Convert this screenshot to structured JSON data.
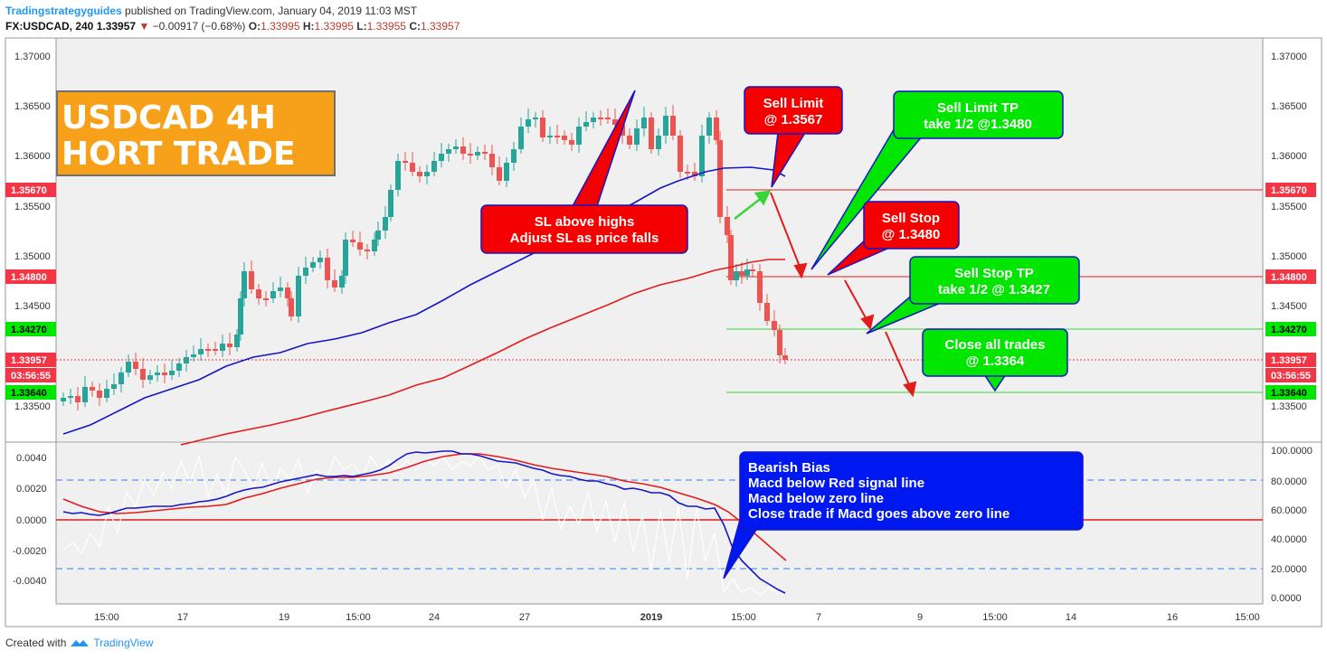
{
  "header": {
    "publisher": "Tradingstrategyguides",
    "published_text": "published on TradingView.com, January 04, 2019 11:03 MST",
    "symbol": "FX:USDCAD, 240",
    "last": "1.33957",
    "change": "−0.00917 (−0.68%)",
    "ohlc": {
      "O": "1.33995",
      "H": "1.33995",
      "L": "1.33955",
      "C": "1.33957"
    }
  },
  "title_box": {
    "line1": "USDCAD 4H",
    "line2": "HORT TRADE"
  },
  "price_axis": {
    "ticks": [
      "1.37000",
      "1.36500",
      "1.36000",
      "1.35500",
      "1.35000",
      "1.34500",
      "1.34000",
      "1.33500"
    ],
    "left_labels": [
      {
        "text": "1.35670",
        "color": "#f23645"
      },
      {
        "text": "1.34800",
        "color": "#f23645"
      },
      {
        "text": "1.34270",
        "color": "#00e600"
      },
      {
        "text": "1.33957",
        "color": "#f23645"
      },
      {
        "text": "03:56:55",
        "color": "#f23645"
      },
      {
        "text": "1.33640",
        "color": "#00e600"
      }
    ]
  },
  "macd_axis": {
    "left_ticks": [
      "0.0040",
      "0.0020",
      "0.0000",
      "-0.0020",
      "-0.0040"
    ],
    "right_ticks": [
      "100.0000",
      "80.0000",
      "60.0000",
      "40.0000",
      "20.0000",
      "0.0000"
    ]
  },
  "time_axis": [
    "15:00",
    "17",
    "19",
    "15:00",
    "24",
    "27",
    "2019",
    "15:00",
    "7",
    "9",
    "15:00",
    "14",
    "16",
    "15:00"
  ],
  "callouts": {
    "sl": [
      "SL above highs",
      "Adjust SL as price falls"
    ],
    "sell_limit": [
      "Sell Limit",
      "@ 1.3567"
    ],
    "sell_limit_tp": [
      "Sell Limit TP",
      "take 1/2 @1.3480"
    ],
    "sell_stop": [
      "Sell Stop",
      "@ 1.3480"
    ],
    "sell_stop_tp": [
      "Sell Stop TP",
      "take 1/2 @ 1.3427"
    ],
    "close_all": [
      "Close all trades",
      "@ 1.3364"
    ],
    "bearish": [
      "Bearish Bias",
      "Macd below Red signal line",
      "Macd below zero line",
      "Close trade if Macd goes above zero line"
    ]
  },
  "footer": {
    "created_with": "Created with",
    "brand": "TradingView"
  },
  "colors": {
    "up": "#26a69a",
    "down": "#ef5350",
    "ema_fast": "#1515c8",
    "ema_slow": "#e31b1b",
    "accent_orange": "#f7a11a"
  }
}
